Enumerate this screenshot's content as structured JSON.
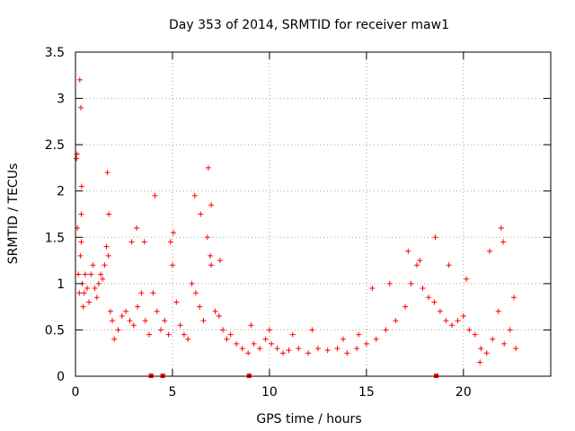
{
  "chart_data": {
    "type": "scatter",
    "title": "Day 353 of 2014, SRMTID for receiver maw1",
    "xlabel": "GPS time / hours",
    "ylabel": "SRMTID / TECUs",
    "xlim": [
      0,
      24.5
    ],
    "ylim": [
      0,
      3.5
    ],
    "xticks": [
      0,
      5,
      10,
      15,
      20
    ],
    "yticks": [
      0,
      0.5,
      1,
      1.5,
      2,
      2.5,
      3,
      3.5
    ],
    "xtick_labels": [
      "0",
      "5",
      "10",
      "15",
      "20"
    ],
    "ytick_labels": [
      "0",
      "0.5",
      "1",
      "1.5",
      "2",
      "2.5",
      "3",
      "3.5"
    ],
    "grid": true,
    "marker": "plus",
    "color": "#ff0000",
    "series": [
      {
        "name": "maw1",
        "x": [
          0.05,
          0.1,
          0.15,
          0.2,
          0.25,
          0.3,
          0.35,
          0.4,
          0.45,
          0.5,
          0.6,
          0.7,
          0.8,
          0.9,
          1.0,
          1.1,
          1.2,
          1.3,
          1.4,
          1.5,
          1.6,
          1.7,
          1.8,
          1.9,
          2.0,
          2.2,
          2.4,
          2.6,
          2.8,
          3.0,
          3.2,
          3.4,
          3.6,
          3.8,
          4.0,
          4.2,
          4.4,
          4.6,
          4.8,
          5.0,
          5.2,
          5.4,
          5.6,
          5.8,
          6.0,
          6.2,
          6.4,
          6.6,
          6.8,
          7.0,
          7.2,
          7.4,
          7.6,
          7.8,
          8.0,
          8.3,
          8.6,
          8.9,
          9.2,
          9.5,
          9.8,
          10.1,
          10.4,
          10.7,
          11.0,
          11.5,
          12.0,
          12.5,
          13.0,
          13.5,
          14.0,
          14.5,
          15.0,
          15.5,
          16.0,
          16.5,
          17.0,
          17.3,
          17.6,
          17.9,
          18.2,
          18.5,
          18.8,
          19.1,
          19.4,
          19.7,
          20.0,
          20.3,
          20.6,
          20.9,
          21.2,
          21.5,
          21.8,
          22.1,
          22.4,
          22.7,
          0.22,
          0.28,
          0.32,
          1.65,
          1.72,
          4.1,
          6.15,
          6.85,
          7.0,
          21.95,
          0.08,
          0.3,
          2.9,
          3.15,
          3.55,
          4.9,
          5.05,
          6.45,
          6.95,
          7.45,
          9.05,
          10.0,
          11.2,
          12.2,
          13.8,
          14.6,
          15.3,
          16.2,
          17.15,
          17.75,
          18.55,
          19.25,
          20.15,
          20.85,
          21.35,
          22.05,
          22.6
        ],
        "y": [
          2.35,
          1.6,
          1.1,
          0.9,
          1.3,
          1.45,
          1.0,
          0.75,
          0.9,
          1.1,
          0.95,
          0.8,
          1.1,
          1.2,
          0.95,
          0.85,
          1.0,
          1.1,
          1.05,
          1.2,
          1.4,
          1.3,
          0.7,
          0.6,
          0.4,
          0.5,
          0.65,
          0.7,
          0.6,
          0.55,
          0.75,
          0.9,
          0.6,
          0.45,
          0.9,
          0.7,
          0.5,
          0.6,
          0.45,
          1.2,
          0.8,
          0.55,
          0.45,
          0.4,
          1.0,
          0.9,
          0.75,
          0.6,
          1.5,
          1.2,
          0.7,
          0.65,
          0.5,
          0.4,
          0.45,
          0.35,
          0.3,
          0.25,
          0.35,
          0.3,
          0.4,
          0.35,
          0.3,
          0.25,
          0.28,
          0.3,
          0.25,
          0.3,
          0.28,
          0.3,
          0.25,
          0.3,
          0.35,
          0.4,
          0.5,
          0.6,
          0.75,
          1.0,
          1.2,
          0.95,
          0.85,
          0.8,
          0.7,
          0.6,
          0.55,
          0.6,
          0.65,
          0.5,
          0.45,
          0.3,
          0.25,
          0.4,
          0.7,
          0.35,
          0.5,
          0.3,
          3.2,
          2.9,
          2.05,
          2.2,
          1.75,
          1.95,
          1.95,
          2.25,
          1.85,
          1.6,
          2.4,
          1.75,
          1.45,
          1.6,
          1.45,
          1.45,
          1.55,
          1.75,
          1.3,
          1.25,
          0.55,
          0.5,
          0.45,
          0.5,
          0.4,
          0.45,
          0.95,
          1.0,
          1.35,
          1.25,
          1.5,
          1.2,
          1.05,
          0.15,
          1.35,
          1.45,
          0.85
        ]
      }
    ],
    "zero_marks_x": [
      3.9,
      4.5,
      8.95,
      18.6
    ]
  }
}
